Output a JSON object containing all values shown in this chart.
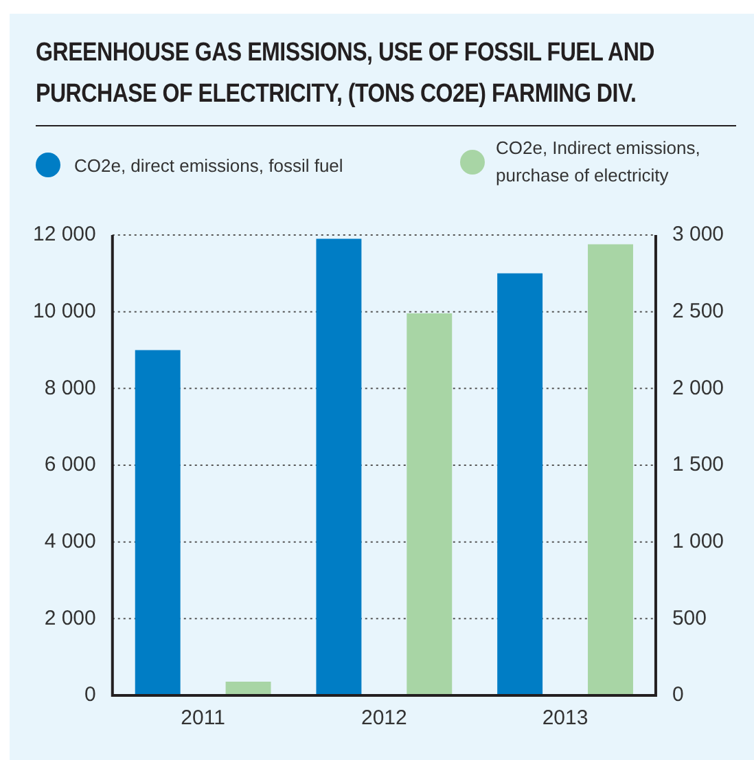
{
  "chart_data": {
    "type": "bar",
    "title": "GREENHOUSE GAS EMISSIONS, USE OF FOSSIL FUEL AND PURCHASE OF ELECTRICITY, (TONS CO2E) FARMING DIV.",
    "categories": [
      "2011",
      "2012",
      "2013"
    ],
    "series": [
      {
        "name": "CO2e, direct emissions, fossil fuel",
        "color": "#007dc5",
        "values": [
          9000,
          11900,
          11000
        ]
      },
      {
        "name": "CO2e, Indirect emissions, purchase of electricity",
        "color": "#a8d5a5",
        "values": [
          90,
          2490,
          2940
        ],
        "axis": "y2"
      }
    ],
    "ylim": [
      0,
      12000
    ],
    "yticks": [
      0,
      {
        "value": 2000,
        "label": "2 000"
      },
      {
        "value": 4000,
        "label": "4 000"
      },
      {
        "value": 6000,
        "label": "6 000"
      },
      {
        "value": 8000,
        "label": "8 000"
      },
      {
        "value": 10000,
        "label": "10 000"
      },
      {
        "value": 12000,
        "label": "12 000"
      }
    ],
    "y2lim": [
      0,
      3000
    ],
    "y2ticks": [
      0,
      500,
      {
        "value": 1000,
        "label": "1 000"
      },
      {
        "value": 1500,
        "label": "1 500"
      },
      {
        "value": 2000,
        "label": "2 000"
      },
      {
        "value": 2500,
        "label": "2 500"
      },
      {
        "value": 3000,
        "label": "3 000"
      }
    ],
    "grid": "y",
    "legend": "top"
  }
}
